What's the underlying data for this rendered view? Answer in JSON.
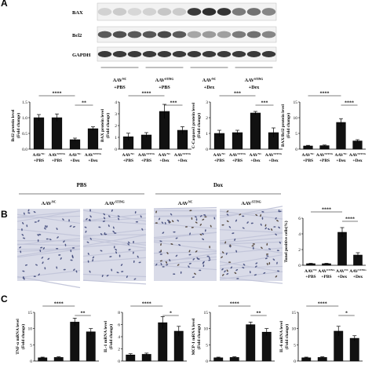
{
  "panels": {
    "a": "A",
    "b": "B",
    "c": "C"
  },
  "blot": {
    "rows": [
      "BAX",
      "Bcl2",
      "GAPDH"
    ],
    "groups": [
      {
        "top": "AAV",
        "sup": "NC",
        "bottom": "+PBS"
      },
      {
        "top": "AAV",
        "sup": "STING",
        "bottom": "+PBS"
      },
      {
        "top": "AAV",
        "sup": "NC",
        "bottom": "+Dex"
      },
      {
        "top": "AAV",
        "sup": "STING",
        "bottom": "+Dex"
      }
    ],
    "bands": {
      "BAX": [
        0.15,
        0.18,
        0.12,
        0.15,
        0.2,
        0.18,
        0.85,
        0.9,
        0.88,
        0.55,
        0.6,
        0.5
      ],
      "Bcl2": [
        0.7,
        0.75,
        0.7,
        0.72,
        0.78,
        0.7,
        0.35,
        0.4,
        0.38,
        0.55,
        0.6,
        0.5
      ],
      "GAPDH": [
        0.85,
        0.85,
        0.85,
        0.85,
        0.85,
        0.85,
        0.85,
        0.85,
        0.85,
        0.85,
        0.85,
        0.85
      ]
    }
  },
  "tissue": {
    "pbs_label": "PBS",
    "dex_label": "Dox",
    "groups": [
      {
        "text": "AAV",
        "sup": "NC"
      },
      {
        "text": "AAV",
        "sup": "STING"
      },
      {
        "text": "AAV",
        "sup": "NC"
      },
      {
        "text": "AAV",
        "sup": "STING"
      }
    ]
  },
  "x_labels": [
    {
      "top": "AAV",
      "sup": "NC",
      "bottom": "+PBS"
    },
    {
      "top": "AAV",
      "sup": "STING",
      "bottom": "+PBS"
    },
    {
      "top": "AAV",
      "sup": "NC",
      "bottom": "+Dex"
    },
    {
      "top": "AAV",
      "sup": "STING",
      "bottom": "+Dex"
    }
  ],
  "chart_data": [
    {
      "type": "bar",
      "panel": "A",
      "ylabel": "Bcl2 protein level",
      "ylabel2": "(Fold change)",
      "categories": [
        "AAVNC+PBS",
        "AAVSTING+PBS",
        "AAVNC+Dex",
        "AAVSTING+Dex"
      ],
      "values": [
        1.0,
        1.0,
        0.3,
        0.65
      ],
      "errors": [
        0.1,
        0.12,
        0.05,
        0.06
      ],
      "ylim": [
        0,
        1.5
      ],
      "yticks": [
        "0.0",
        "0.5",
        "1.0",
        "1.5"
      ],
      "sig": [
        {
          "from": 0,
          "to": 2,
          "label": "****"
        },
        {
          "from": 2,
          "to": 3,
          "label": "**"
        }
      ]
    },
    {
      "type": "bar",
      "panel": "A",
      "ylabel": "BAX protein level",
      "ylabel2": "(Fold change)",
      "categories": [
        "AAVNC+PBS",
        "AAVSTING+PBS",
        "AAVNC+Dex",
        "AAVSTING+Dex"
      ],
      "values": [
        1.05,
        1.2,
        3.2,
        1.6
      ],
      "errors": [
        0.3,
        0.2,
        0.6,
        0.3
      ],
      "ylim": [
        0,
        4
      ],
      "yticks": [
        "0",
        "1",
        "2",
        "3",
        "4"
      ],
      "sig": [
        {
          "from": 0,
          "to": 2,
          "label": "****"
        },
        {
          "from": 2,
          "to": 3,
          "label": "***"
        }
      ]
    },
    {
      "type": "bar",
      "panel": "A",
      "ylabel": "C-Caspase3 protein level",
      "ylabel2": "(Fold change)",
      "categories": [
        "AAVNC+PBS",
        "AAVSTING+PBS",
        "AAVNC+Dex",
        "AAVSTING+Dex"
      ],
      "values": [
        1.0,
        1.05,
        2.3,
        1.05
      ],
      "errors": [
        0.2,
        0.15,
        0.1,
        0.3
      ],
      "ylim": [
        0,
        3
      ],
      "yticks": [
        "0",
        "1",
        "2",
        "3"
      ],
      "sig": [
        {
          "from": 0,
          "to": 2,
          "label": "***"
        },
        {
          "from": 2,
          "to": 3,
          "label": "***"
        }
      ]
    },
    {
      "type": "bar",
      "panel": "A",
      "ylabel": "BAX/Bcl2 protein level",
      "ylabel2": "(Fold change)",
      "categories": [
        "AAVNC+PBS",
        "AAVSTING+PBS",
        "AAVNC+Dex",
        "AAVSTING+Dex"
      ],
      "values": [
        1.0,
        1.1,
        8.5,
        2.6
      ],
      "errors": [
        0.2,
        0.2,
        1.2,
        0.4
      ],
      "ylim": [
        0,
        15
      ],
      "yticks": [
        "0",
        "5",
        "10",
        "15"
      ],
      "sig": [
        {
          "from": 0,
          "to": 2,
          "label": "****"
        },
        {
          "from": 2,
          "to": 3,
          "label": "****"
        }
      ]
    },
    {
      "type": "bar",
      "panel": "B",
      "ylabel": "Tunel positive cells(%)",
      "ylabel2": "",
      "categories": [
        "AAVNC+PBS",
        "AAVSTING+PBS",
        "AAVNC+Dex",
        "AAVSTING+Dex"
      ],
      "values": [
        0.2,
        0.2,
        4.2,
        1.3
      ],
      "errors": [
        0.05,
        0.05,
        0.6,
        0.3
      ],
      "ylim": [
        0,
        6
      ],
      "yticks": [
        "0",
        "2",
        "4",
        "6"
      ],
      "sig": [
        {
          "from": 0,
          "to": 2,
          "label": "****"
        },
        {
          "from": 2,
          "to": 3,
          "label": "****"
        }
      ]
    },
    {
      "type": "bar",
      "panel": "C",
      "ylabel": "TNF-α mRNA level",
      "ylabel2": "(Fold change)",
      "categories": [
        "",
        "",
        "",
        ""
      ],
      "values": [
        1.0,
        1.1,
        12.0,
        9.0
      ],
      "errors": [
        0.2,
        0.2,
        1.2,
        1.0
      ],
      "ylim": [
        0,
        15
      ],
      "yticks": [
        "0",
        "5",
        "10",
        "15"
      ],
      "sig": [
        {
          "from": 0,
          "to": 2,
          "label": "****"
        },
        {
          "from": 2,
          "to": 3,
          "label": "**"
        }
      ]
    },
    {
      "type": "bar",
      "panel": "C",
      "ylabel": "IL-1 mRNA level",
      "ylabel2": "(Fold change)",
      "categories": [
        "",
        "",
        "",
        ""
      ],
      "values": [
        1.0,
        1.1,
        6.3,
        4.9
      ],
      "errors": [
        0.2,
        0.2,
        1.0,
        0.8
      ],
      "ylim": [
        0,
        8
      ],
      "yticks": [
        "0",
        "2",
        "4",
        "6",
        "8"
      ],
      "sig": [
        {
          "from": 0,
          "to": 2,
          "label": "****"
        },
        {
          "from": 2,
          "to": 3,
          "label": "*"
        }
      ]
    },
    {
      "type": "bar",
      "panel": "C",
      "ylabel": "MCP-1 mRNA level",
      "ylabel2": "(Fold change)",
      "categories": [
        "",
        "",
        "",
        ""
      ],
      "values": [
        1.0,
        1.1,
        11.2,
        8.9
      ],
      "errors": [
        0.2,
        0.2,
        0.8,
        1.1
      ],
      "ylim": [
        0,
        15
      ],
      "yticks": [
        "0",
        "5",
        "10",
        "15"
      ],
      "sig": [
        {
          "from": 0,
          "to": 2,
          "label": "****"
        },
        {
          "from": 2,
          "to": 3,
          "label": "**"
        }
      ]
    },
    {
      "type": "bar",
      "panel": "C",
      "ylabel": "IL-6 mRNA level",
      "ylabel2": "(Fold change)",
      "categories": [
        "",
        "",
        "",
        ""
      ],
      "values": [
        1.0,
        1.1,
        9.2,
        7.0
      ],
      "errors": [
        0.2,
        0.2,
        1.5,
        0.8
      ],
      "ylim": [
        0,
        15
      ],
      "yticks": [
        "0",
        "5",
        "10",
        "15"
      ],
      "sig": [
        {
          "from": 0,
          "to": 2,
          "label": "****"
        },
        {
          "from": 2,
          "to": 3,
          "label": "*"
        }
      ]
    }
  ],
  "colors": {
    "bar_fill": "#111111",
    "bar_light": "#ffffff",
    "tissue_bg": "#d9dbe8",
    "nuclei": "#2f3a6e",
    "blot_bg": "#f2f2f2",
    "band": "#1a1a1a"
  }
}
